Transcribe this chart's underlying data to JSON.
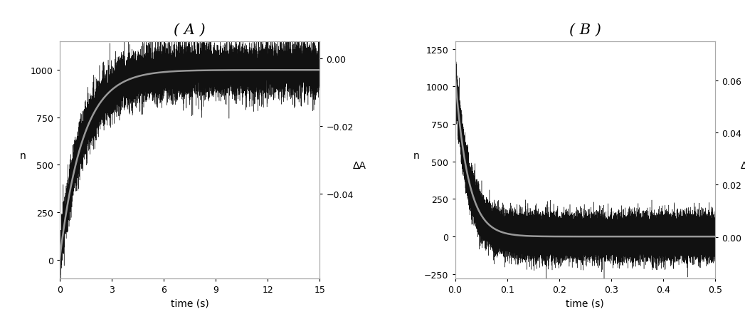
{
  "panel_A": {
    "title": "( A )",
    "xlabel": "time (s)",
    "ylabel_left": "n",
    "ylabel_right": "ΔA",
    "xlim": [
      0,
      15
    ],
    "ylim_left": [
      -100,
      1150
    ],
    "ylim_right": [
      -0.065,
      0.005
    ],
    "yticks_left": [
      0,
      250,
      500,
      750,
      1000
    ],
    "yticks_right": [
      0.0,
      -0.02,
      -0.04
    ],
    "xticks": [
      0,
      3,
      6,
      9,
      12,
      15
    ],
    "smooth_color": "#999999",
    "noisy_color": "#111111",
    "time_end": 15.0,
    "n_points": 15000,
    "rise_rate": 0.75,
    "plateau": 1000,
    "noise_std": 65
  },
  "panel_B": {
    "title": "( B )",
    "xlabel": "time (s)",
    "ylabel_left": "n",
    "ylabel_right": "ΔA",
    "xlim": [
      0,
      0.5
    ],
    "ylim_left": [
      -280,
      1300
    ],
    "ylim_right": [
      -0.016,
      0.075
    ],
    "yticks_left": [
      -250,
      0,
      250,
      500,
      750,
      1000,
      1250
    ],
    "yticks_right": [
      0.0,
      0.02,
      0.04,
      0.06
    ],
    "xticks": [
      0.0,
      0.1,
      0.2,
      0.3,
      0.4,
      0.5
    ],
    "smooth_color": "#999999",
    "noisy_color": "#111111",
    "time_end": 0.5,
    "n_points": 50000,
    "decay_rate": 40.0,
    "plateau": 0,
    "initial": 1075,
    "noise_std": 65
  },
  "background_color": "#ffffff",
  "spine_color": "#aaaaaa",
  "title_fontsize": 15,
  "label_fontsize": 10,
  "tick_fontsize": 9
}
